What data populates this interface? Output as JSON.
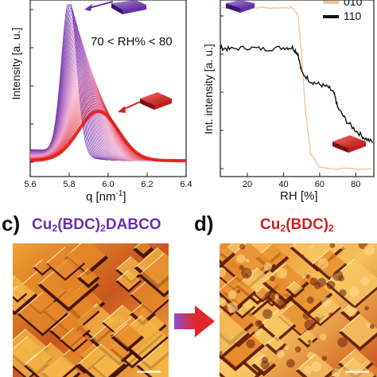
{
  "panel_a": {
    "xlabel": "q [nm",
    "xlabel_sup": "-1",
    "xlabel_end": "]",
    "ylabel": "Intensity [a. u.]",
    "annotation": "70 < RH% < 80",
    "xticks": [
      "5.6",
      "5.8",
      "6.0",
      "6.2",
      "6.4"
    ]
  },
  "panel_b": {
    "xlabel": "RH [%]",
    "ylabel": "Int. intensity [a. u.]",
    "xticks": [
      "20",
      "40",
      "60",
      "80"
    ],
    "legend": [
      {
        "label": "010",
        "color": "#f3c49a"
      },
      {
        "label": "110",
        "color": "#111111"
      }
    ]
  },
  "panel_c": {
    "letter": "c)",
    "title_main": "Cu",
    "title_sub1": "2",
    "title_mid": "(BDC)",
    "title_sub2": "2",
    "title_end": "DABCO",
    "color": "#6a2fb0"
  },
  "panel_d": {
    "letter": "d)",
    "title_main": "Cu",
    "title_sub1": "2",
    "title_mid": "(BDC)",
    "title_sub2": "2",
    "color": "#d11f1f"
  },
  "chart_data": [
    {
      "type": "line",
      "xlabel": "q [nm-1]",
      "ylabel": "Intensity [a. u.]",
      "xlim": [
        5.6,
        6.4
      ],
      "annotation": "70 < RH% < 80",
      "series": [
        {
          "color": "#6a2fb0",
          "peak_q": 5.8
        },
        {
          "color": "#e01a1a",
          "peak_q": 5.95
        }
      ]
    },
    {
      "type": "line",
      "xlabel": "RH [%]",
      "ylabel": "Int. intensity [a. u.]",
      "xlim": [
        5,
        90
      ],
      "series": [
        {
          "name": "010",
          "color": "#f3c49a",
          "x": [
            5,
            20,
            40,
            45,
            48,
            50,
            52,
            55,
            60,
            70,
            80,
            90
          ],
          "y": [
            1.1,
            1.1,
            1.1,
            1.1,
            1.05,
            0.8,
            0.45,
            0.15,
            0.06,
            0.05,
            0.05,
            0.05
          ]
        },
        {
          "name": "110",
          "color": "#111111",
          "x": [
            5,
            10,
            20,
            30,
            40,
            45,
            48,
            50,
            55,
            60,
            65,
            68,
            70,
            75,
            80,
            85,
            90
          ],
          "y": [
            0.84,
            0.83,
            0.84,
            0.83,
            0.84,
            0.84,
            0.8,
            0.68,
            0.62,
            0.6,
            0.58,
            0.54,
            0.45,
            0.36,
            0.3,
            0.25,
            0.22
          ]
        }
      ]
    }
  ]
}
